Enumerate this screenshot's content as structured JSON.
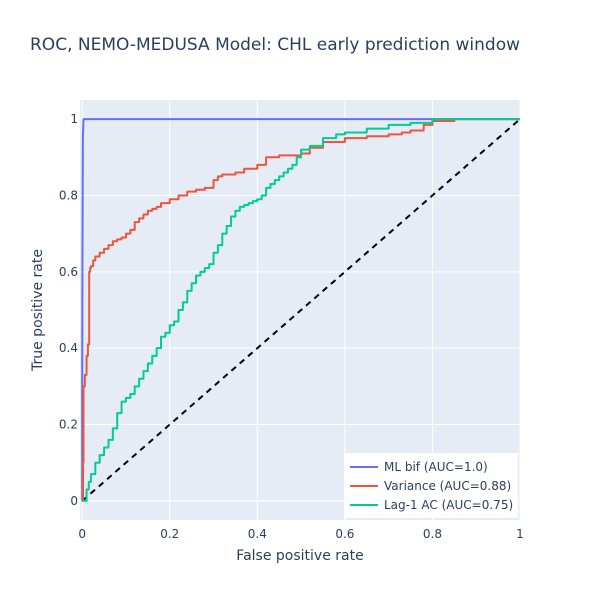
{
  "chart_data": {
    "type": "line",
    "title": "ROC, NEMO-MEDUSA Model: CHL early prediction window",
    "xlabel": "False positive rate",
    "ylabel": "True positive rate",
    "xlim": [
      -0.005,
      1.0
    ],
    "ylim": [
      -0.05,
      1.05
    ],
    "grid": true,
    "legend_position": "bottom-right",
    "x_ticks": [
      0,
      0.2,
      0.4,
      0.6,
      0.8,
      1
    ],
    "x_tick_labels": [
      "0",
      "0.2",
      "0.4",
      "0.6",
      "0.8",
      "1"
    ],
    "y_ticks": [
      0,
      0.2,
      0.4,
      0.6,
      0.8,
      1
    ],
    "y_tick_labels": [
      "0",
      "0.2",
      "0.4",
      "0.6",
      "0.8",
      "1"
    ],
    "series": [
      {
        "name": "ML bif (AUC=1.0)",
        "color": "#636efa",
        "x": [
          0,
          0,
          0.0005,
          0.0015,
          0.003,
          1.0
        ],
        "y": [
          0,
          0.28,
          0.6,
          0.95,
          1.0,
          1.0
        ]
      },
      {
        "name": "Variance (AUC=0.88)",
        "color": "#EF553B",
        "x": [
          0,
          0.002,
          0.003,
          0.006,
          0.01,
          0.013,
          0.016,
          0.018,
          0.02,
          0.025,
          0.03,
          0.04,
          0.05,
          0.06,
          0.07,
          0.08,
          0.09,
          0.1,
          0.11,
          0.12,
          0.13,
          0.14,
          0.15,
          0.16,
          0.17,
          0.18,
          0.2,
          0.22,
          0.24,
          0.26,
          0.28,
          0.3,
          0.31,
          0.32,
          0.35,
          0.37,
          0.4,
          0.42,
          0.45,
          0.5,
          0.52,
          0.55,
          0.6,
          0.65,
          0.7,
          0.73,
          0.75,
          0.78,
          0.8,
          0.85,
          0.9,
          1.0
        ],
        "y": [
          0,
          0.1,
          0.3,
          0.33,
          0.38,
          0.41,
          0.6,
          0.61,
          0.615,
          0.63,
          0.64,
          0.65,
          0.66,
          0.67,
          0.68,
          0.685,
          0.69,
          0.7,
          0.71,
          0.73,
          0.74,
          0.75,
          0.76,
          0.765,
          0.77,
          0.78,
          0.79,
          0.8,
          0.81,
          0.815,
          0.82,
          0.84,
          0.85,
          0.855,
          0.86,
          0.87,
          0.88,
          0.9,
          0.905,
          0.91,
          0.925,
          0.94,
          0.95,
          0.955,
          0.96,
          0.965,
          0.97,
          0.985,
          0.995,
          1.0,
          1.0,
          1.0
        ],
        "line_shape": "hv"
      },
      {
        "name": "Lag-1 AC (AUC=0.75)",
        "color": "#00cc96",
        "x": [
          0,
          0.01,
          0.015,
          0.02,
          0.03,
          0.04,
          0.05,
          0.06,
          0.07,
          0.08,
          0.09,
          0.1,
          0.11,
          0.12,
          0.13,
          0.14,
          0.15,
          0.16,
          0.17,
          0.18,
          0.19,
          0.2,
          0.21,
          0.22,
          0.23,
          0.24,
          0.25,
          0.26,
          0.27,
          0.28,
          0.29,
          0.3,
          0.31,
          0.32,
          0.33,
          0.34,
          0.35,
          0.36,
          0.37,
          0.38,
          0.39,
          0.4,
          0.41,
          0.42,
          0.43,
          0.44,
          0.45,
          0.46,
          0.47,
          0.48,
          0.49,
          0.5,
          0.52,
          0.55,
          0.58,
          0.6,
          0.65,
          0.7,
          0.75,
          0.8,
          0.85,
          1.0
        ],
        "y": [
          0,
          0.03,
          0.05,
          0.07,
          0.1,
          0.12,
          0.14,
          0.16,
          0.19,
          0.23,
          0.26,
          0.27,
          0.28,
          0.3,
          0.32,
          0.34,
          0.36,
          0.38,
          0.4,
          0.43,
          0.44,
          0.46,
          0.47,
          0.5,
          0.52,
          0.55,
          0.57,
          0.59,
          0.6,
          0.61,
          0.62,
          0.65,
          0.67,
          0.7,
          0.72,
          0.745,
          0.76,
          0.77,
          0.775,
          0.78,
          0.785,
          0.79,
          0.8,
          0.82,
          0.83,
          0.84,
          0.85,
          0.86,
          0.87,
          0.88,
          0.9,
          0.92,
          0.93,
          0.95,
          0.96,
          0.965,
          0.975,
          0.985,
          0.99,
          1.0,
          1.0,
          1.0
        ],
        "line_shape": "hv"
      }
    ],
    "reference_line": {
      "x": [
        0,
        1
      ],
      "y": [
        0,
        1
      ],
      "color": "#000000",
      "dash": "dash"
    },
    "colors": {
      "plot_background": "#e5ecf6",
      "grid": "#ffffff",
      "text": "#2a3f5f"
    }
  }
}
